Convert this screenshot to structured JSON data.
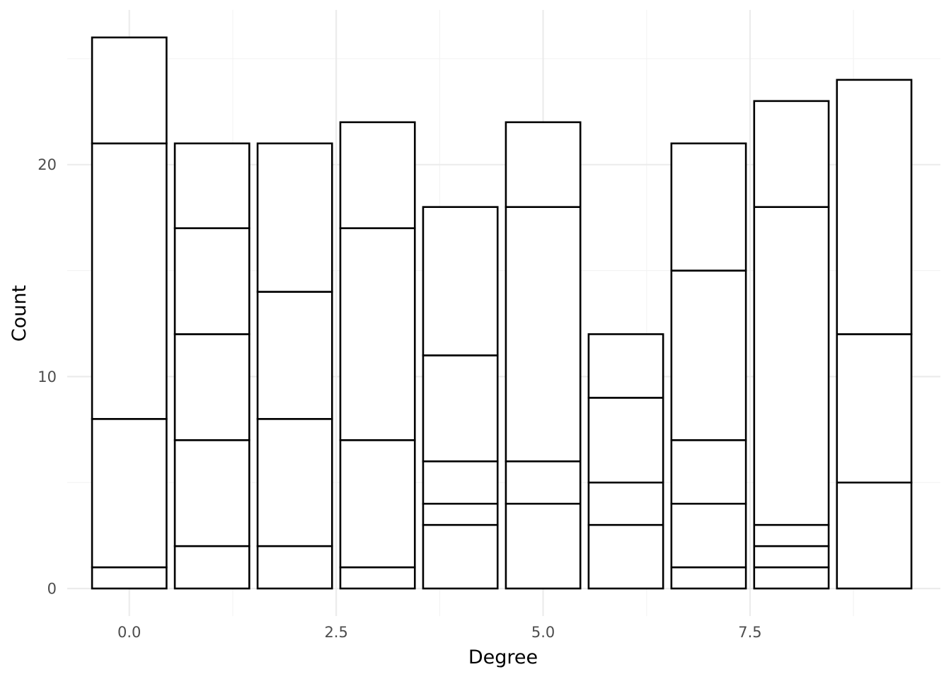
{
  "chart_data": {
    "type": "bar",
    "stacked": true,
    "title": "",
    "xlabel": "Degree",
    "ylabel": "Count",
    "xlim": [
      -0.75,
      9.8
    ],
    "ylim": [
      -1.3,
      27.3
    ],
    "x_ticks": [
      {
        "value": 0,
        "label": "0.0"
      },
      {
        "value": 2.5,
        "label": "2.5"
      },
      {
        "value": 5,
        "label": "5.0"
      },
      {
        "value": 7.5,
        "label": "7.5"
      }
    ],
    "y_ticks": [
      {
        "value": 0,
        "label": "0"
      },
      {
        "value": 10,
        "label": "10"
      },
      {
        "value": 20,
        "label": "20"
      }
    ],
    "bar_width": 0.9,
    "bars": [
      {
        "x": 0,
        "stack_boundaries": [
          0,
          1,
          8,
          21,
          26
        ]
      },
      {
        "x": 1,
        "stack_boundaries": [
          0,
          2,
          7,
          12,
          17,
          21
        ]
      },
      {
        "x": 2,
        "stack_boundaries": [
          0,
          2,
          8,
          14,
          21
        ]
      },
      {
        "x": 3,
        "stack_boundaries": [
          0,
          1,
          7,
          17,
          22
        ]
      },
      {
        "x": 4,
        "stack_boundaries": [
          0,
          3,
          4,
          6,
          11,
          18
        ]
      },
      {
        "x": 5,
        "stack_boundaries": [
          0,
          4,
          6,
          18,
          22
        ]
      },
      {
        "x": 6,
        "stack_boundaries": [
          0,
          3,
          5,
          9,
          12
        ]
      },
      {
        "x": 7,
        "stack_boundaries": [
          0,
          1,
          4,
          7,
          15,
          21
        ]
      },
      {
        "x": 8,
        "stack_boundaries": [
          0,
          1,
          2,
          3,
          18,
          23
        ]
      },
      {
        "x": 9,
        "stack_boundaries": [
          0,
          5,
          12,
          24
        ]
      }
    ],
    "grid": true,
    "legend": "none",
    "colors": {
      "bar_fill": "#ffffff",
      "bar_outline": "#000000",
      "grid": "#ebebeb"
    }
  }
}
